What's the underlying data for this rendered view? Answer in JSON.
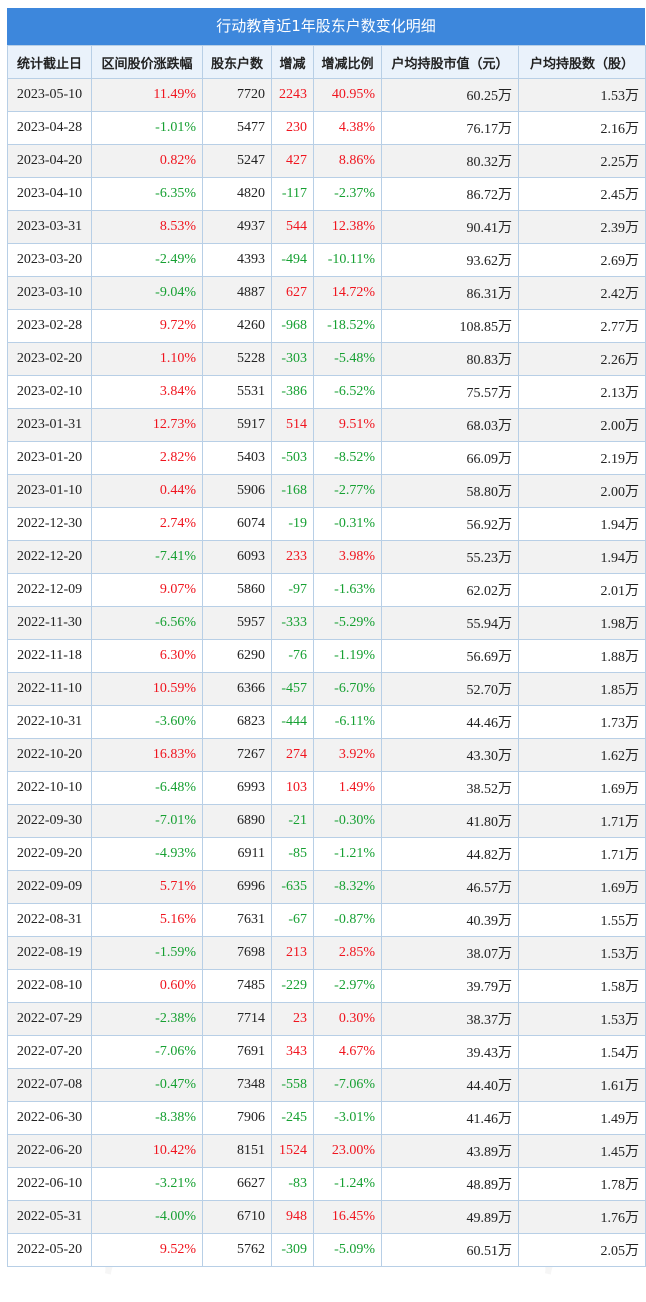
{
  "title": "行动教育近1年股东户数变化明细",
  "columns": [
    "统计截止日",
    "区间股价涨跌幅",
    "股东户数",
    "增减",
    "增减比例",
    "户均持股市值（元）",
    "户均持股数（股）"
  ],
  "colors": {
    "up": "#f0141e",
    "down": "#16a032",
    "header_bg": "#3d87dc",
    "border": "#b8cfe6"
  },
  "watermark": "证券之星",
  "rows": [
    {
      "date": "2023-05-10",
      "price_change": "11.49%",
      "holders": "7720",
      "change": "2243",
      "change_pct": "40.95%",
      "avg_value": "60.25万",
      "avg_shares": "1.53万"
    },
    {
      "date": "2023-04-28",
      "price_change": "-1.01%",
      "holders": "5477",
      "change": "230",
      "change_pct": "4.38%",
      "avg_value": "76.17万",
      "avg_shares": "2.16万"
    },
    {
      "date": "2023-04-20",
      "price_change": "0.82%",
      "holders": "5247",
      "change": "427",
      "change_pct": "8.86%",
      "avg_value": "80.32万",
      "avg_shares": "2.25万"
    },
    {
      "date": "2023-04-10",
      "price_change": "-6.35%",
      "holders": "4820",
      "change": "-117",
      "change_pct": "-2.37%",
      "avg_value": "86.72万",
      "avg_shares": "2.45万"
    },
    {
      "date": "2023-03-31",
      "price_change": "8.53%",
      "holders": "4937",
      "change": "544",
      "change_pct": "12.38%",
      "avg_value": "90.41万",
      "avg_shares": "2.39万"
    },
    {
      "date": "2023-03-20",
      "price_change": "-2.49%",
      "holders": "4393",
      "change": "-494",
      "change_pct": "-10.11%",
      "avg_value": "93.62万",
      "avg_shares": "2.69万"
    },
    {
      "date": "2023-03-10",
      "price_change": "-9.04%",
      "holders": "4887",
      "change": "627",
      "change_pct": "14.72%",
      "avg_value": "86.31万",
      "avg_shares": "2.42万"
    },
    {
      "date": "2023-02-28",
      "price_change": "9.72%",
      "holders": "4260",
      "change": "-968",
      "change_pct": "-18.52%",
      "avg_value": "108.85万",
      "avg_shares": "2.77万"
    },
    {
      "date": "2023-02-20",
      "price_change": "1.10%",
      "holders": "5228",
      "change": "-303",
      "change_pct": "-5.48%",
      "avg_value": "80.83万",
      "avg_shares": "2.26万"
    },
    {
      "date": "2023-02-10",
      "price_change": "3.84%",
      "holders": "5531",
      "change": "-386",
      "change_pct": "-6.52%",
      "avg_value": "75.57万",
      "avg_shares": "2.13万"
    },
    {
      "date": "2023-01-31",
      "price_change": "12.73%",
      "holders": "5917",
      "change": "514",
      "change_pct": "9.51%",
      "avg_value": "68.03万",
      "avg_shares": "2.00万"
    },
    {
      "date": "2023-01-20",
      "price_change": "2.82%",
      "holders": "5403",
      "change": "-503",
      "change_pct": "-8.52%",
      "avg_value": "66.09万",
      "avg_shares": "2.19万"
    },
    {
      "date": "2023-01-10",
      "price_change": "0.44%",
      "holders": "5906",
      "change": "-168",
      "change_pct": "-2.77%",
      "avg_value": "58.80万",
      "avg_shares": "2.00万"
    },
    {
      "date": "2022-12-30",
      "price_change": "2.74%",
      "holders": "6074",
      "change": "-19",
      "change_pct": "-0.31%",
      "avg_value": "56.92万",
      "avg_shares": "1.94万"
    },
    {
      "date": "2022-12-20",
      "price_change": "-7.41%",
      "holders": "6093",
      "change": "233",
      "change_pct": "3.98%",
      "avg_value": "55.23万",
      "avg_shares": "1.94万"
    },
    {
      "date": "2022-12-09",
      "price_change": "9.07%",
      "holders": "5860",
      "change": "-97",
      "change_pct": "-1.63%",
      "avg_value": "62.02万",
      "avg_shares": "2.01万"
    },
    {
      "date": "2022-11-30",
      "price_change": "-6.56%",
      "holders": "5957",
      "change": "-333",
      "change_pct": "-5.29%",
      "avg_value": "55.94万",
      "avg_shares": "1.98万"
    },
    {
      "date": "2022-11-18",
      "price_change": "6.30%",
      "holders": "6290",
      "change": "-76",
      "change_pct": "-1.19%",
      "avg_value": "56.69万",
      "avg_shares": "1.88万"
    },
    {
      "date": "2022-11-10",
      "price_change": "10.59%",
      "holders": "6366",
      "change": "-457",
      "change_pct": "-6.70%",
      "avg_value": "52.70万",
      "avg_shares": "1.85万"
    },
    {
      "date": "2022-10-31",
      "price_change": "-3.60%",
      "holders": "6823",
      "change": "-444",
      "change_pct": "-6.11%",
      "avg_value": "44.46万",
      "avg_shares": "1.73万"
    },
    {
      "date": "2022-10-20",
      "price_change": "16.83%",
      "holders": "7267",
      "change": "274",
      "change_pct": "3.92%",
      "avg_value": "43.30万",
      "avg_shares": "1.62万"
    },
    {
      "date": "2022-10-10",
      "price_change": "-6.48%",
      "holders": "6993",
      "change": "103",
      "change_pct": "1.49%",
      "avg_value": "38.52万",
      "avg_shares": "1.69万"
    },
    {
      "date": "2022-09-30",
      "price_change": "-7.01%",
      "holders": "6890",
      "change": "-21",
      "change_pct": "-0.30%",
      "avg_value": "41.80万",
      "avg_shares": "1.71万"
    },
    {
      "date": "2022-09-20",
      "price_change": "-4.93%",
      "holders": "6911",
      "change": "-85",
      "change_pct": "-1.21%",
      "avg_value": "44.82万",
      "avg_shares": "1.71万"
    },
    {
      "date": "2022-09-09",
      "price_change": "5.71%",
      "holders": "6996",
      "change": "-635",
      "change_pct": "-8.32%",
      "avg_value": "46.57万",
      "avg_shares": "1.69万"
    },
    {
      "date": "2022-08-31",
      "price_change": "5.16%",
      "holders": "7631",
      "change": "-67",
      "change_pct": "-0.87%",
      "avg_value": "40.39万",
      "avg_shares": "1.55万"
    },
    {
      "date": "2022-08-19",
      "price_change": "-1.59%",
      "holders": "7698",
      "change": "213",
      "change_pct": "2.85%",
      "avg_value": "38.07万",
      "avg_shares": "1.53万"
    },
    {
      "date": "2022-08-10",
      "price_change": "0.60%",
      "holders": "7485",
      "change": "-229",
      "change_pct": "-2.97%",
      "avg_value": "39.79万",
      "avg_shares": "1.58万"
    },
    {
      "date": "2022-07-29",
      "price_change": "-2.38%",
      "holders": "7714",
      "change": "23",
      "change_pct": "0.30%",
      "avg_value": "38.37万",
      "avg_shares": "1.53万"
    },
    {
      "date": "2022-07-20",
      "price_change": "-7.06%",
      "holders": "7691",
      "change": "343",
      "change_pct": "4.67%",
      "avg_value": "39.43万",
      "avg_shares": "1.54万"
    },
    {
      "date": "2022-07-08",
      "price_change": "-0.47%",
      "holders": "7348",
      "change": "-558",
      "change_pct": "-7.06%",
      "avg_value": "44.40万",
      "avg_shares": "1.61万"
    },
    {
      "date": "2022-06-30",
      "price_change": "-8.38%",
      "holders": "7906",
      "change": "-245",
      "change_pct": "-3.01%",
      "avg_value": "41.46万",
      "avg_shares": "1.49万"
    },
    {
      "date": "2022-06-20",
      "price_change": "10.42%",
      "holders": "8151",
      "change": "1524",
      "change_pct": "23.00%",
      "avg_value": "43.89万",
      "avg_shares": "1.45万"
    },
    {
      "date": "2022-06-10",
      "price_change": "-3.21%",
      "holders": "6627",
      "change": "-83",
      "change_pct": "-1.24%",
      "avg_value": "48.89万",
      "avg_shares": "1.78万"
    },
    {
      "date": "2022-05-31",
      "price_change": "-4.00%",
      "holders": "6710",
      "change": "948",
      "change_pct": "16.45%",
      "avg_value": "49.89万",
      "avg_shares": "1.76万"
    },
    {
      "date": "2022-05-20",
      "price_change": "9.52%",
      "holders": "5762",
      "change": "-309",
      "change_pct": "-5.09%",
      "avg_value": "60.51万",
      "avg_shares": "2.05万"
    }
  ]
}
